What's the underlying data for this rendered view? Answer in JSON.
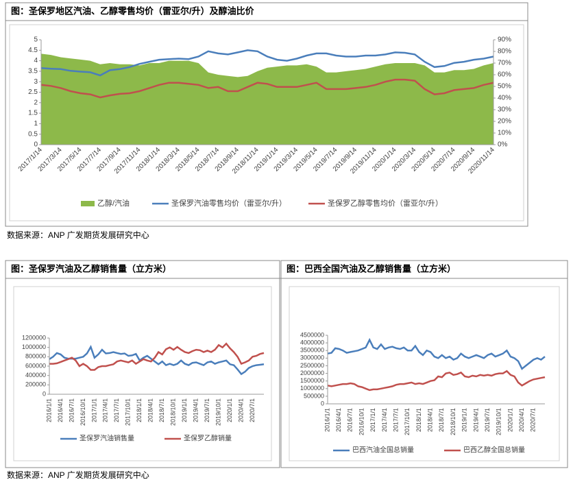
{
  "chart_data": [
    {
      "type": "line",
      "title": "图：圣保罗地区汽油、乙醇零售均价（雷亚尔/升）及醇油比价",
      "categories": [
        "2017/1/14",
        null,
        "2017/3/14",
        null,
        "2017/5/14",
        null,
        "2017/7/14",
        null,
        "2017/9/14",
        null,
        "2017/11/14",
        null,
        "2018/1/14",
        null,
        "2018/3/14",
        null,
        "2018/5/14",
        null,
        "2018/7/14",
        null,
        "2018/9/14",
        null,
        "2018/11/14",
        null,
        "2019/1/14",
        null,
        "2019/3/14",
        null,
        "2019/5/14",
        null,
        "2019/7/14",
        null,
        "2019/9/14",
        null,
        "2019/11/14",
        null,
        "2020/1/14",
        null,
        "2020/3/14",
        null,
        "2020/5/14",
        null,
        "2020/7/14",
        null,
        "2020/9/14",
        null,
        "2020/11/14"
      ],
      "ylim": [
        0,
        5
      ],
      "yticks": [
        0,
        0.5,
        1,
        1.5,
        2,
        2.5,
        3,
        3.5,
        4,
        4.5,
        5
      ],
      "y2lim": [
        0,
        90
      ],
      "y2ticks": [
        {
          "value": 0,
          "label": "0%"
        },
        {
          "value": 10,
          "label": "10%"
        },
        {
          "value": 20,
          "label": "20%"
        },
        {
          "value": 30,
          "label": "30%"
        },
        {
          "value": 40,
          "label": "40%"
        },
        {
          "value": 50,
          "label": "50%"
        },
        {
          "value": 60,
          "label": "60%"
        },
        {
          "value": 70,
          "label": "70%"
        },
        {
          "value": 80,
          "label": "80%"
        },
        {
          "value": 90,
          "label": "90%"
        }
      ],
      "series": [
        {
          "name": "乙醇/汽油",
          "type": "area",
          "axis": "y2",
          "color": "#8db94a",
          "values": [
            78,
            77,
            75,
            74,
            73,
            72,
            69,
            70,
            69,
            69,
            68,
            70,
            70,
            72,
            72,
            72,
            70,
            62,
            60,
            59,
            58,
            59,
            63,
            66,
            67,
            68,
            68,
            69,
            67,
            62,
            62,
            63,
            64,
            65,
            67,
            69,
            70,
            70,
            70,
            68,
            62,
            62,
            64,
            64,
            65,
            68,
            70
          ]
        },
        {
          "name": "圣保罗汽油零售均价（雷亚尔/升）",
          "color": "#4a7ebb",
          "values": [
            3.65,
            3.62,
            3.6,
            3.52,
            3.48,
            3.45,
            3.3,
            3.55,
            3.6,
            3.7,
            3.85,
            3.95,
            4.05,
            4.08,
            4.1,
            4.08,
            4.2,
            4.45,
            4.35,
            4.3,
            4.4,
            4.5,
            4.45,
            4.2,
            4.05,
            4.0,
            4.1,
            4.25,
            4.35,
            4.35,
            4.25,
            4.2,
            4.2,
            4.25,
            4.25,
            4.3,
            4.4,
            4.38,
            4.3,
            3.95,
            3.7,
            3.75,
            3.9,
            3.95,
            4.05,
            4.1,
            4.2
          ]
        },
        {
          "name": "圣保罗乙醇零售均价（雷亚尔/升）",
          "color": "#c0504d",
          "values": [
            2.85,
            2.8,
            2.7,
            2.55,
            2.45,
            2.4,
            2.25,
            2.35,
            2.42,
            2.45,
            2.55,
            2.7,
            2.85,
            2.95,
            2.95,
            2.9,
            2.85,
            2.7,
            2.75,
            2.55,
            2.55,
            2.75,
            2.95,
            2.9,
            2.75,
            2.75,
            2.75,
            2.85,
            2.95,
            2.65,
            2.65,
            2.65,
            2.7,
            2.75,
            2.85,
            3.0,
            3.1,
            3.1,
            3.05,
            2.65,
            2.4,
            2.45,
            2.6,
            2.65,
            2.7,
            2.85,
            2.95
          ]
        }
      ]
    },
    {
      "type": "line",
      "title": "图：圣保罗汽油及乙醇销售量（立方米）",
      "categories": [
        "2016/1/1",
        null,
        null,
        "2016/4/1",
        null,
        null,
        "2016/7/1",
        null,
        null,
        "2016/10/1",
        null,
        null,
        "2017/1/1",
        null,
        null,
        "2017/4/1",
        null,
        null,
        "2017/7/1",
        null,
        null,
        "2017/10/1",
        null,
        null,
        "2018/1/1",
        null,
        null,
        "2018/4/1",
        null,
        null,
        "2018/7/1",
        null,
        null,
        "2018/10/1",
        null,
        null,
        "2019/1/1",
        null,
        null,
        "2019/4/1",
        null,
        null,
        "2019/7/1",
        null,
        null,
        "2019/10/1",
        null,
        null,
        "2020/1/1",
        null,
        null,
        "2020/4/1",
        null,
        null,
        "2020/7/1",
        null,
        null,
        null
      ],
      "ylim": [
        0,
        1200000
      ],
      "yticks": [
        0,
        200000,
        400000,
        600000,
        800000,
        1000000,
        1200000
      ],
      "series": [
        {
          "name": "圣保罗汽油销售量",
          "color": "#4a7ebb",
          "values": [
            750000,
            800000,
            880000,
            850000,
            780000,
            760000,
            760000,
            760000,
            780000,
            800000,
            870000,
            1010000,
            780000,
            850000,
            950000,
            870000,
            880000,
            900000,
            880000,
            860000,
            870000,
            820000,
            830000,
            860000,
            720000,
            780000,
            820000,
            760000,
            700000,
            640000,
            700000,
            620000,
            650000,
            620000,
            650000,
            720000,
            650000,
            620000,
            670000,
            680000,
            650000,
            620000,
            680000,
            700000,
            650000,
            680000,
            700000,
            720000,
            640000,
            620000,
            530000,
            430000,
            480000,
            560000,
            600000,
            620000,
            630000,
            640000
          ]
        },
        {
          "name": "圣保罗乙醇销量",
          "color": "#c0504d",
          "values": [
            650000,
            650000,
            660000,
            690000,
            720000,
            750000,
            780000,
            720000,
            600000,
            650000,
            600000,
            520000,
            520000,
            580000,
            600000,
            600000,
            620000,
            640000,
            700000,
            720000,
            700000,
            680000,
            720000,
            650000,
            700000,
            750000,
            720000,
            700000,
            780000,
            900000,
            850000,
            960000,
            1000000,
            950000,
            1010000,
            950000,
            900000,
            880000,
            920000,
            950000,
            940000,
            900000,
            930000,
            900000,
            950000,
            1050000,
            1000000,
            1080000,
            980000,
            900000,
            800000,
            650000,
            680000,
            720000,
            800000,
            820000,
            860000,
            880000
          ]
        }
      ]
    },
    {
      "type": "line",
      "title": "图：巴西全国汽油及乙醇销售量（立方米）",
      "categories": [
        "2016/1/1",
        null,
        null,
        "2016/4/1",
        null,
        null,
        "2016/7/1",
        null,
        null,
        "2016/10/1",
        null,
        null,
        "2017/1/1",
        null,
        null,
        "2017/4/1",
        null,
        null,
        "2017/7/1",
        null,
        null,
        "2017/10/1",
        null,
        null,
        "2018/1/1",
        null,
        null,
        "2018/4/1",
        null,
        null,
        "2018/7/1",
        null,
        null,
        "2018/10/1",
        null,
        null,
        "2019/1/1",
        null,
        null,
        "2019/4/1",
        null,
        null,
        "2019/7/1",
        null,
        null,
        "2019/10/1",
        null,
        null,
        "2020/1/1",
        null,
        null,
        "2020/4/1",
        null,
        null,
        "2020/7/1",
        null,
        null,
        null
      ],
      "ylim": [
        0,
        4500000
      ],
      "yticks": [
        0,
        500000,
        1000000,
        1500000,
        2000000,
        2500000,
        3000000,
        3500000,
        4000000,
        4500000
      ],
      "series": [
        {
          "name": "巴西汽油全国总销量",
          "color": "#4a7ebb",
          "values": [
            3300000,
            3350000,
            3650000,
            3600000,
            3500000,
            3350000,
            3400000,
            3450000,
            3500000,
            3600000,
            3700000,
            4200000,
            3700000,
            3600000,
            3900000,
            3600000,
            3700000,
            3750000,
            3650000,
            3600000,
            3700000,
            3500000,
            3500000,
            3800000,
            3400000,
            3200000,
            3500000,
            3400000,
            3100000,
            3000000,
            3200000,
            3000000,
            3100000,
            2900000,
            3000000,
            3300000,
            3100000,
            3000000,
            3100000,
            3200000,
            3100000,
            3000000,
            3200000,
            3300000,
            3100000,
            3200000,
            3300000,
            3500000,
            3100000,
            3000000,
            2800000,
            2300000,
            2500000,
            2700000,
            2900000,
            3000000,
            2900000,
            3100000
          ]
        },
        {
          "name": "巴西乙醇全国总销量",
          "color": "#c0504d",
          "values": [
            1200000,
            1150000,
            1200000,
            1250000,
            1300000,
            1300000,
            1350000,
            1300000,
            1150000,
            1100000,
            1000000,
            900000,
            950000,
            950000,
            1000000,
            1050000,
            1100000,
            1150000,
            1250000,
            1300000,
            1300000,
            1350000,
            1400000,
            1300000,
            1350000,
            1300000,
            1400000,
            1500000,
            1550000,
            1800000,
            1750000,
            2000000,
            2050000,
            1900000,
            1950000,
            2050000,
            1800000,
            1750000,
            1850000,
            1800000,
            1900000,
            1850000,
            1900000,
            1850000,
            1950000,
            2000000,
            2000000,
            2150000,
            1900000,
            1800000,
            1400000,
            1200000,
            1350000,
            1500000,
            1600000,
            1650000,
            1700000,
            1750000
          ]
        }
      ]
    }
  ],
  "sources": [
    "数据来源：ANP 广发期货发展研究中心",
    "数据来源：ANP 广发期货发展研究中心"
  ]
}
